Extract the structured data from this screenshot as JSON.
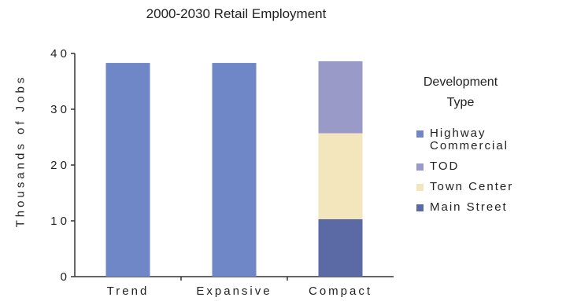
{
  "chart_data": {
    "type": "bar",
    "stacked": true,
    "title": "2000-2030 Retail Employment",
    "ylabel": "Thousands of Jobs",
    "xlabel": "",
    "categories": [
      "Trend",
      "Expansive",
      "Compact"
    ],
    "ylim": [
      0,
      40
    ],
    "yticks": [
      "0",
      "1 0",
      "2 0",
      "3 0",
      "4 0"
    ],
    "ytick_values": [
      0,
      10,
      20,
      30,
      40
    ],
    "grid": false,
    "legend_title": "Development Type",
    "legend_position": "right",
    "series": [
      {
        "name": "Highway Commercial",
        "legend_label": "Highway\nCommercial",
        "color": "#6f87c6",
        "values": [
          38.3,
          38.3,
          0
        ]
      },
      {
        "name": "TOD",
        "legend_label": "TOD",
        "color": "#9a9ac8",
        "values": [
          0,
          0,
          12.9
        ]
      },
      {
        "name": "Town Center",
        "legend_label": "Town Center",
        "color": "#f3e6bd",
        "values": [
          0,
          0,
          15.4
        ]
      },
      {
        "name": "Main Street",
        "legend_label": "Main Street",
        "color": "#5b6aa4",
        "values": [
          0,
          0,
          10.3
        ]
      }
    ],
    "stack_order_bottom_to_top": [
      "Main Street",
      "Town Center",
      "TOD",
      "Highway Commercial"
    ]
  }
}
